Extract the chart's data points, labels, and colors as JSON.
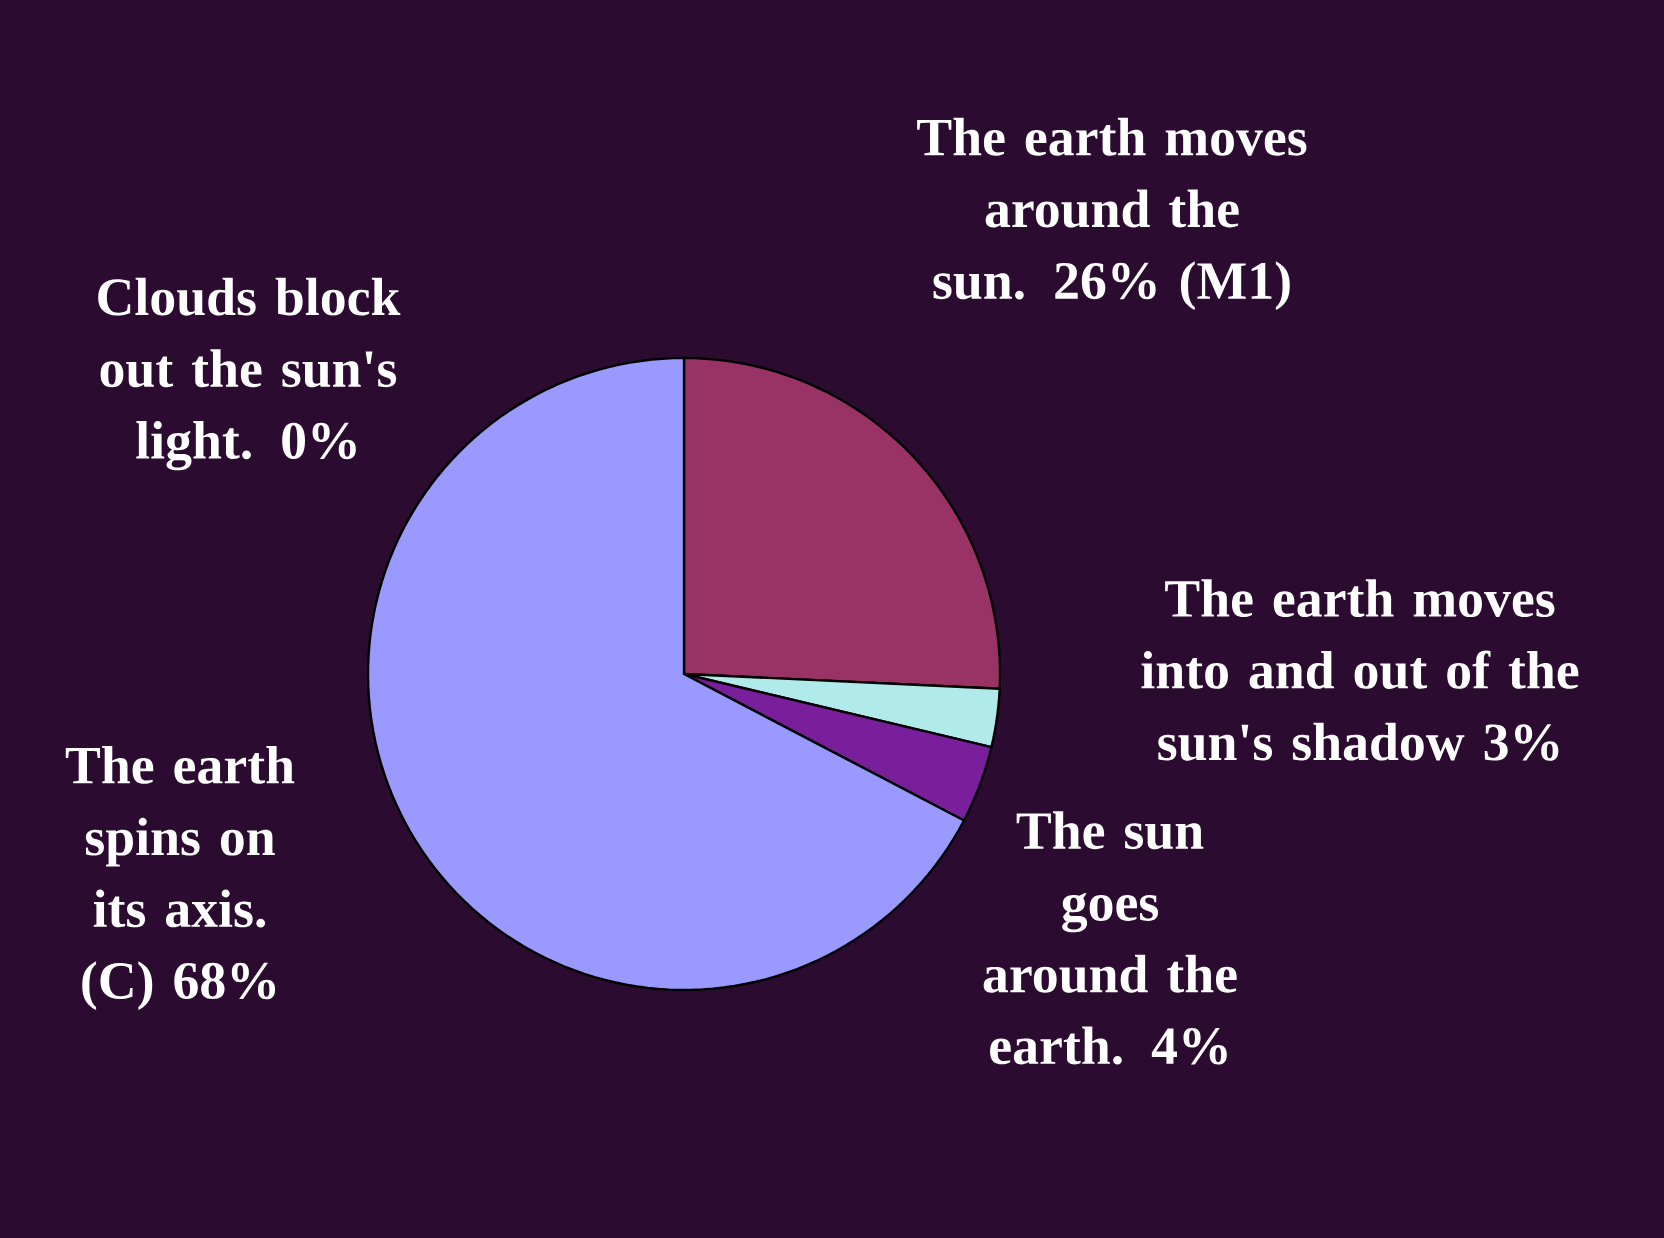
{
  "chart_data": {
    "type": "pie",
    "categories": [
      "Clouds block out the sun's light.",
      "The earth moves around the sun.",
      "The earth moves into and out of the sun's shadow",
      "The sun goes around the earth.",
      "The earth spins on its axis."
    ],
    "values": [
      0,
      26,
      3,
      4,
      68
    ],
    "value_labels": [
      "0%",
      "26% (M1)",
      "3%",
      "4%",
      "(C) 68%"
    ],
    "colors": [
      "#ffffcc",
      "#993366",
      "#b0eaea",
      "#7a1f9c",
      "#9999ff"
    ]
  }
}
